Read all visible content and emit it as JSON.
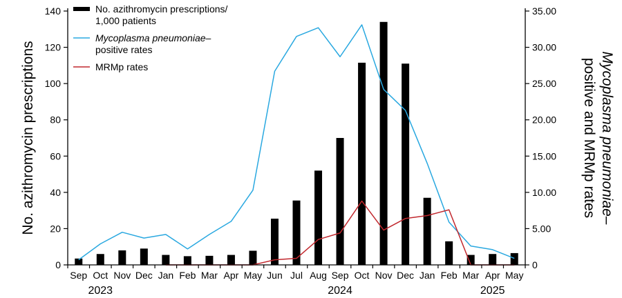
{
  "chart_data": {
    "type": "bar+line",
    "categories": [
      "Sep",
      "Oct",
      "Nov",
      "Dec",
      "Jan",
      "Feb",
      "Mar",
      "Apr",
      "May",
      "Jun",
      "Jul",
      "Aug",
      "Sep",
      "Oct",
      "Nov",
      "Dec",
      "Jan",
      "Feb",
      "Mar",
      "Apr",
      "May"
    ],
    "year_labels": [
      {
        "label": "2023",
        "category_index": 1
      },
      {
        "label": "2024",
        "category_index": 12
      },
      {
        "label": "2025",
        "category_index": 19
      }
    ],
    "y_left": {
      "label": "No. azithromycin prescriptions",
      "ylim": [
        0,
        140
      ],
      "ticks": [
        "0",
        "20",
        "40",
        "60",
        "80",
        "100",
        "120",
        "140"
      ]
    },
    "y_right": {
      "label_line1": "Mycoplasma pneumoniae–",
      "label_line2": "positive and MRMp rates",
      "ylim": [
        0,
        35
      ],
      "ticks": [
        "0",
        "5.00",
        "10.00",
        "15.00",
        "20.00",
        "25.00",
        "30.00",
        "35.00"
      ]
    },
    "series": [
      {
        "name_line1": "No. azithromycin prescriptions/",
        "name_line2": "1,000 patients",
        "kind": "bar",
        "axis": "left",
        "color": "#000000",
        "values": [
          3.5,
          6,
          8,
          9,
          5.5,
          4.8,
          5,
          5.5,
          7.8,
          25.5,
          35.5,
          52,
          70,
          111.5,
          134,
          111,
          37,
          13,
          5.5,
          6,
          6.5
        ]
      },
      {
        "name_italic": "Mycoplasma pneumoniae",
        "name_rest": "–",
        "name_line2": "positive rates",
        "kind": "line",
        "axis": "right",
        "color": "#29a8e0",
        "values": [
          0.7,
          2.9,
          4.5,
          3.7,
          4.2,
          2.2,
          4.2,
          6.0,
          10.3,
          26.7,
          31.5,
          32.7,
          28.7,
          33.1,
          24.2,
          21.3,
          14.0,
          5.9,
          2.6,
          2.1,
          0.9
        ]
      },
      {
        "name": "MRMp rates",
        "kind": "line",
        "axis": "right",
        "color": "#c1272d",
        "start_index": 4,
        "values": [
          null,
          null,
          null,
          null,
          0.0,
          0.0,
          0.0,
          0.0,
          0.0,
          0.7,
          0.9,
          3.5,
          4.4,
          8.8,
          4.8,
          6.4,
          6.8,
          7.6,
          0.0,
          0.0,
          0.0
        ]
      }
    ]
  }
}
